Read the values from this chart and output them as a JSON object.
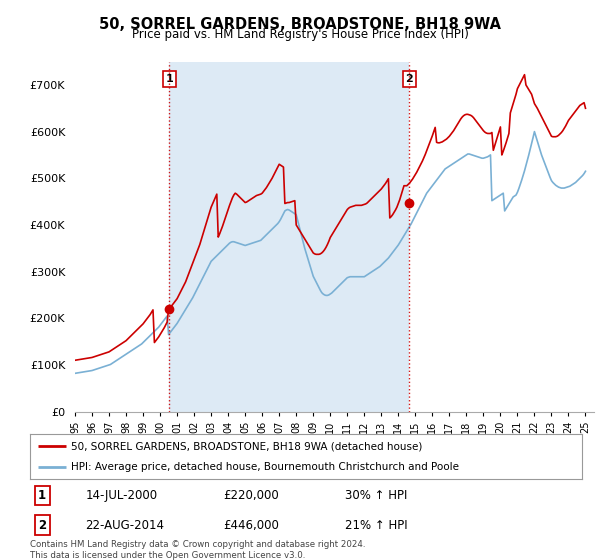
{
  "title": "50, SORREL GARDENS, BROADSTONE, BH18 9WA",
  "subtitle": "Price paid vs. HM Land Registry's House Price Index (HPI)",
  "ylim": [
    0,
    750000
  ],
  "yticks": [
    0,
    100000,
    200000,
    300000,
    400000,
    500000,
    600000,
    700000
  ],
  "property_color": "#cc0000",
  "hpi_color": "#7ab0d4",
  "vline_color": "#cc0000",
  "shade_color": "#ddeaf5",
  "marker1_x": 2000.54,
  "marker1_price": 220000,
  "marker2_x": 2014.64,
  "marker2_price": 446000,
  "annotation1_label": "1",
  "annotation2_label": "2",
  "legend_property": "50, SORREL GARDENS, BROADSTONE, BH18 9WA (detached house)",
  "legend_hpi": "HPI: Average price, detached house, Bournemouth Christchurch and Poole",
  "table_row1": [
    "1",
    "14-JUL-2000",
    "£220,000",
    "30% ↑ HPI"
  ],
  "table_row2": [
    "2",
    "22-AUG-2014",
    "£446,000",
    "21% ↑ HPI"
  ],
  "footnote": "Contains HM Land Registry data © Crown copyright and database right 2024.\nThis data is licensed under the Open Government Licence v3.0.",
  "background_color": "#ffffff",
  "grid_color": "#cccccc",
  "xlim_start": 1995.0,
  "xlim_end": 2025.5,
  "xtick_years": [
    1995,
    1996,
    1997,
    1998,
    1999,
    2000,
    2001,
    2002,
    2003,
    2004,
    2005,
    2006,
    2007,
    2008,
    2009,
    2010,
    2011,
    2012,
    2013,
    2014,
    2015,
    2016,
    2017,
    2018,
    2019,
    2020,
    2021,
    2022,
    2023,
    2024,
    2025
  ],
  "hpi_x": [
    1995.0,
    1995.083,
    1995.167,
    1995.25,
    1995.333,
    1995.417,
    1995.5,
    1995.583,
    1995.667,
    1995.75,
    1995.833,
    1995.917,
    1996.0,
    1996.083,
    1996.167,
    1996.25,
    1996.333,
    1996.417,
    1996.5,
    1996.583,
    1996.667,
    1996.75,
    1996.833,
    1996.917,
    1997.0,
    1997.083,
    1997.167,
    1997.25,
    1997.333,
    1997.417,
    1997.5,
    1997.583,
    1997.667,
    1997.75,
    1997.833,
    1997.917,
    1998.0,
    1998.083,
    1998.167,
    1998.25,
    1998.333,
    1998.417,
    1998.5,
    1998.583,
    1998.667,
    1998.75,
    1998.833,
    1998.917,
    1999.0,
    1999.083,
    1999.167,
    1999.25,
    1999.333,
    1999.417,
    1999.5,
    1999.583,
    1999.667,
    1999.75,
    1999.833,
    1999.917,
    2000.0,
    2000.083,
    2000.167,
    2000.25,
    2000.333,
    2000.417,
    2000.5,
    2000.583,
    2000.667,
    2000.75,
    2000.833,
    2000.917,
    2001.0,
    2001.083,
    2001.167,
    2001.25,
    2001.333,
    2001.417,
    2001.5,
    2001.583,
    2001.667,
    2001.75,
    2001.833,
    2001.917,
    2002.0,
    2002.083,
    2002.167,
    2002.25,
    2002.333,
    2002.417,
    2002.5,
    2002.583,
    2002.667,
    2002.75,
    2002.833,
    2002.917,
    2003.0,
    2003.083,
    2003.167,
    2003.25,
    2003.333,
    2003.417,
    2003.5,
    2003.583,
    2003.667,
    2003.75,
    2003.833,
    2003.917,
    2004.0,
    2004.083,
    2004.167,
    2004.25,
    2004.333,
    2004.417,
    2004.5,
    2004.583,
    2004.667,
    2004.75,
    2004.833,
    2004.917,
    2005.0,
    2005.083,
    2005.167,
    2005.25,
    2005.333,
    2005.417,
    2005.5,
    2005.583,
    2005.667,
    2005.75,
    2005.833,
    2005.917,
    2006.0,
    2006.083,
    2006.167,
    2006.25,
    2006.333,
    2006.417,
    2006.5,
    2006.583,
    2006.667,
    2006.75,
    2006.833,
    2006.917,
    2007.0,
    2007.083,
    2007.167,
    2007.25,
    2007.333,
    2007.417,
    2007.5,
    2007.583,
    2007.667,
    2007.75,
    2007.833,
    2007.917,
    2008.0,
    2008.083,
    2008.167,
    2008.25,
    2008.333,
    2008.417,
    2008.5,
    2008.583,
    2008.667,
    2008.75,
    2008.833,
    2008.917,
    2009.0,
    2009.083,
    2009.167,
    2009.25,
    2009.333,
    2009.417,
    2009.5,
    2009.583,
    2009.667,
    2009.75,
    2009.833,
    2009.917,
    2010.0,
    2010.083,
    2010.167,
    2010.25,
    2010.333,
    2010.417,
    2010.5,
    2010.583,
    2010.667,
    2010.75,
    2010.833,
    2010.917,
    2011.0,
    2011.083,
    2011.167,
    2011.25,
    2011.333,
    2011.417,
    2011.5,
    2011.583,
    2011.667,
    2011.75,
    2011.833,
    2011.917,
    2012.0,
    2012.083,
    2012.167,
    2012.25,
    2012.333,
    2012.417,
    2012.5,
    2012.583,
    2012.667,
    2012.75,
    2012.833,
    2012.917,
    2013.0,
    2013.083,
    2013.167,
    2013.25,
    2013.333,
    2013.417,
    2013.5,
    2013.583,
    2013.667,
    2013.75,
    2013.833,
    2013.917,
    2014.0,
    2014.083,
    2014.167,
    2014.25,
    2014.333,
    2014.417,
    2014.5,
    2014.583,
    2014.667,
    2014.75,
    2014.833,
    2014.917,
    2015.0,
    2015.083,
    2015.167,
    2015.25,
    2015.333,
    2015.417,
    2015.5,
    2015.583,
    2015.667,
    2015.75,
    2015.833,
    2015.917,
    2016.0,
    2016.083,
    2016.167,
    2016.25,
    2016.333,
    2016.417,
    2016.5,
    2016.583,
    2016.667,
    2016.75,
    2016.833,
    2016.917,
    2017.0,
    2017.083,
    2017.167,
    2017.25,
    2017.333,
    2017.417,
    2017.5,
    2017.583,
    2017.667,
    2017.75,
    2017.833,
    2017.917,
    2018.0,
    2018.083,
    2018.167,
    2018.25,
    2018.333,
    2018.417,
    2018.5,
    2018.583,
    2018.667,
    2018.75,
    2018.833,
    2018.917,
    2019.0,
    2019.083,
    2019.167,
    2019.25,
    2019.333,
    2019.417,
    2019.5,
    2019.583,
    2019.667,
    2019.75,
    2019.833,
    2019.917,
    2020.0,
    2020.083,
    2020.167,
    2020.25,
    2020.333,
    2020.417,
    2020.5,
    2020.583,
    2020.667,
    2020.75,
    2020.833,
    2020.917,
    2021.0,
    2021.083,
    2021.167,
    2021.25,
    2021.333,
    2021.417,
    2021.5,
    2021.583,
    2021.667,
    2021.75,
    2021.833,
    2021.917,
    2022.0,
    2022.083,
    2022.167,
    2022.25,
    2022.333,
    2022.417,
    2022.5,
    2022.583,
    2022.667,
    2022.75,
    2022.833,
    2022.917,
    2023.0,
    2023.083,
    2023.167,
    2023.25,
    2023.333,
    2023.417,
    2023.5,
    2023.583,
    2023.667,
    2023.75,
    2023.833,
    2023.917,
    2024.0,
    2024.083,
    2024.167,
    2024.25,
    2024.333,
    2024.417,
    2024.5,
    2024.583,
    2024.667,
    2024.75,
    2024.833,
    2024.917,
    2025.0
  ],
  "hpi_v": [
    82000,
    82500,
    83000,
    83500,
    84000,
    84500,
    85000,
    85500,
    86000,
    86500,
    87000,
    87500,
    88000,
    89000,
    90000,
    91000,
    92000,
    93000,
    94000,
    95000,
    96000,
    97000,
    98000,
    99000,
    100000,
    101000,
    103000,
    105000,
    107000,
    109000,
    111000,
    113000,
    115000,
    117000,
    119000,
    121000,
    123000,
    125000,
    127000,
    129000,
    131000,
    133000,
    135000,
    137000,
    139000,
    141000,
    143000,
    145000,
    148000,
    151000,
    154000,
    157000,
    160000,
    163000,
    166000,
    169000,
    172000,
    175000,
    178000,
    181000,
    185000,
    189000,
    193000,
    197000,
    201000,
    205000,
    165000,
    169000,
    173000,
    177000,
    181000,
    185000,
    189000,
    194000,
    199000,
    204000,
    209000,
    214000,
    219000,
    224000,
    229000,
    234000,
    239000,
    244000,
    250000,
    256000,
    262000,
    268000,
    274000,
    280000,
    286000,
    292000,
    298000,
    304000,
    310000,
    316000,
    322000,
    325000,
    328000,
    331000,
    334000,
    337000,
    340000,
    343000,
    346000,
    349000,
    352000,
    355000,
    358000,
    361000,
    363000,
    364000,
    364000,
    363000,
    362000,
    361000,
    360000,
    359000,
    358000,
    357000,
    356000,
    357000,
    358000,
    359000,
    360000,
    361000,
    362000,
    363000,
    364000,
    365000,
    366000,
    367000,
    370000,
    373000,
    376000,
    379000,
    382000,
    385000,
    388000,
    391000,
    394000,
    397000,
    400000,
    403000,
    407000,
    412000,
    418000,
    424000,
    430000,
    432000,
    433000,
    432000,
    430000,
    428000,
    426000,
    424000,
    422000,
    410000,
    398000,
    386000,
    374000,
    362000,
    350000,
    340000,
    330000,
    320000,
    310000,
    300000,
    290000,
    284000,
    278000,
    272000,
    266000,
    260000,
    255000,
    252000,
    250000,
    249000,
    249000,
    250000,
    252000,
    254000,
    257000,
    260000,
    263000,
    266000,
    269000,
    272000,
    275000,
    278000,
    281000,
    284000,
    287000,
    288000,
    289000,
    289000,
    289000,
    289000,
    289000,
    289000,
    289000,
    289000,
    289000,
    289000,
    289000,
    291000,
    293000,
    295000,
    297000,
    299000,
    301000,
    303000,
    305000,
    307000,
    309000,
    311000,
    314000,
    317000,
    320000,
    323000,
    326000,
    329000,
    333000,
    337000,
    341000,
    345000,
    349000,
    353000,
    357000,
    362000,
    367000,
    372000,
    377000,
    382000,
    387000,
    392000,
    397000,
    402000,
    408000,
    414000,
    420000,
    426000,
    432000,
    438000,
    444000,
    450000,
    456000,
    462000,
    468000,
    472000,
    476000,
    480000,
    484000,
    488000,
    492000,
    496000,
    500000,
    504000,
    508000,
    512000,
    516000,
    520000,
    522000,
    524000,
    526000,
    528000,
    530000,
    532000,
    534000,
    536000,
    538000,
    540000,
    542000,
    544000,
    546000,
    548000,
    550000,
    552000,
    552000,
    551000,
    550000,
    549000,
    548000,
    547000,
    546000,
    545000,
    544000,
    543000,
    543000,
    544000,
    545000,
    546000,
    548000,
    550000,
    452000,
    454000,
    456000,
    458000,
    460000,
    462000,
    464000,
    466000,
    468000,
    430000,
    435000,
    440000,
    445000,
    450000,
    455000,
    460000,
    462000,
    464000,
    470000,
    478000,
    487000,
    496000,
    506000,
    516000,
    527000,
    538000,
    550000,
    562000,
    574000,
    587000,
    600000,
    590000,
    580000,
    570000,
    560000,
    550000,
    542000,
    534000,
    526000,
    518000,
    510000,
    502000,
    495000,
    491000,
    488000,
    485000,
    483000,
    481000,
    480000,
    479000,
    479000,
    479000,
    480000,
    481000,
    482000,
    483000,
    485000,
    487000,
    489000,
    491000,
    494000,
    497000,
    500000,
    503000,
    506000,
    510000,
    515000
  ],
  "prop_x": [
    1995.0,
    1995.083,
    1995.167,
    1995.25,
    1995.333,
    1995.417,
    1995.5,
    1995.583,
    1995.667,
    1995.75,
    1995.833,
    1995.917,
    1996.0,
    1996.083,
    1996.167,
    1996.25,
    1996.333,
    1996.417,
    1996.5,
    1996.583,
    1996.667,
    1996.75,
    1996.833,
    1996.917,
    1997.0,
    1997.083,
    1997.167,
    1997.25,
    1997.333,
    1997.417,
    1997.5,
    1997.583,
    1997.667,
    1997.75,
    1997.833,
    1997.917,
    1998.0,
    1998.083,
    1998.167,
    1998.25,
    1998.333,
    1998.417,
    1998.5,
    1998.583,
    1998.667,
    1998.75,
    1998.833,
    1998.917,
    1999.0,
    1999.083,
    1999.167,
    1999.25,
    1999.333,
    1999.417,
    1999.5,
    1999.583,
    1999.667,
    1999.75,
    1999.833,
    1999.917,
    2000.0,
    2000.083,
    2000.167,
    2000.25,
    2000.333,
    2000.417,
    2000.5,
    2000.583,
    2000.667,
    2000.75,
    2000.833,
    2000.917,
    2001.0,
    2001.083,
    2001.167,
    2001.25,
    2001.333,
    2001.417,
    2001.5,
    2001.583,
    2001.667,
    2001.75,
    2001.833,
    2001.917,
    2002.0,
    2002.083,
    2002.167,
    2002.25,
    2002.333,
    2002.417,
    2002.5,
    2002.583,
    2002.667,
    2002.75,
    2002.833,
    2002.917,
    2003.0,
    2003.083,
    2003.167,
    2003.25,
    2003.333,
    2003.417,
    2003.5,
    2003.583,
    2003.667,
    2003.75,
    2003.833,
    2003.917,
    2004.0,
    2004.083,
    2004.167,
    2004.25,
    2004.333,
    2004.417,
    2004.5,
    2004.583,
    2004.667,
    2004.75,
    2004.833,
    2004.917,
    2005.0,
    2005.083,
    2005.167,
    2005.25,
    2005.333,
    2005.417,
    2005.5,
    2005.583,
    2005.667,
    2005.75,
    2005.833,
    2005.917,
    2006.0,
    2006.083,
    2006.167,
    2006.25,
    2006.333,
    2006.417,
    2006.5,
    2006.583,
    2006.667,
    2006.75,
    2006.833,
    2006.917,
    2007.0,
    2007.083,
    2007.167,
    2007.25,
    2007.333,
    2007.417,
    2007.5,
    2007.583,
    2007.667,
    2007.75,
    2007.833,
    2007.917,
    2008.0,
    2008.083,
    2008.167,
    2008.25,
    2008.333,
    2008.417,
    2008.5,
    2008.583,
    2008.667,
    2008.75,
    2008.833,
    2008.917,
    2009.0,
    2009.083,
    2009.167,
    2009.25,
    2009.333,
    2009.417,
    2009.5,
    2009.583,
    2009.667,
    2009.75,
    2009.833,
    2009.917,
    2010.0,
    2010.083,
    2010.167,
    2010.25,
    2010.333,
    2010.417,
    2010.5,
    2010.583,
    2010.667,
    2010.75,
    2010.833,
    2010.917,
    2011.0,
    2011.083,
    2011.167,
    2011.25,
    2011.333,
    2011.417,
    2011.5,
    2011.583,
    2011.667,
    2011.75,
    2011.833,
    2011.917,
    2012.0,
    2012.083,
    2012.167,
    2012.25,
    2012.333,
    2012.417,
    2012.5,
    2012.583,
    2012.667,
    2012.75,
    2012.833,
    2012.917,
    2013.0,
    2013.083,
    2013.167,
    2013.25,
    2013.333,
    2013.417,
    2013.5,
    2013.583,
    2013.667,
    2013.75,
    2013.833,
    2013.917,
    2014.0,
    2014.083,
    2014.167,
    2014.25,
    2014.333,
    2014.417,
    2014.5,
    2014.583,
    2014.667,
    2014.75,
    2014.833,
    2014.917,
    2015.0,
    2015.083,
    2015.167,
    2015.25,
    2015.333,
    2015.417,
    2015.5,
    2015.583,
    2015.667,
    2015.75,
    2015.833,
    2015.917,
    2016.0,
    2016.083,
    2016.167,
    2016.25,
    2016.333,
    2016.417,
    2016.5,
    2016.583,
    2016.667,
    2016.75,
    2016.833,
    2016.917,
    2017.0,
    2017.083,
    2017.167,
    2017.25,
    2017.333,
    2017.417,
    2017.5,
    2017.583,
    2017.667,
    2017.75,
    2017.833,
    2017.917,
    2018.0,
    2018.083,
    2018.167,
    2018.25,
    2018.333,
    2018.417,
    2018.5,
    2018.583,
    2018.667,
    2018.75,
    2018.833,
    2018.917,
    2019.0,
    2019.083,
    2019.167,
    2019.25,
    2019.333,
    2019.417,
    2019.5,
    2019.583,
    2019.667,
    2019.75,
    2019.833,
    2019.917,
    2020.0,
    2020.083,
    2020.167,
    2020.25,
    2020.333,
    2020.417,
    2020.5,
    2020.583,
    2020.667,
    2020.75,
    2020.833,
    2020.917,
    2021.0,
    2021.083,
    2021.167,
    2021.25,
    2021.333,
    2021.417,
    2021.5,
    2021.583,
    2021.667,
    2021.75,
    2021.833,
    2021.917,
    2022.0,
    2022.083,
    2022.167,
    2022.25,
    2022.333,
    2022.417,
    2022.5,
    2022.583,
    2022.667,
    2022.75,
    2022.833,
    2022.917,
    2023.0,
    2023.083,
    2023.167,
    2023.25,
    2023.333,
    2023.417,
    2023.5,
    2023.583,
    2023.667,
    2023.75,
    2023.833,
    2023.917,
    2024.0,
    2024.083,
    2024.167,
    2024.25,
    2024.333,
    2024.417,
    2024.5,
    2024.583,
    2024.667,
    2024.75,
    2024.833,
    2024.917,
    2025.0
  ],
  "prop_v": [
    110000,
    110500,
    111000,
    111500,
    112000,
    112500,
    113000,
    113500,
    114000,
    114500,
    115000,
    115500,
    116000,
    117000,
    118000,
    119000,
    120000,
    121000,
    122000,
    123000,
    124000,
    125000,
    126000,
    127000,
    128000,
    130000,
    132000,
    134000,
    136000,
    138000,
    140000,
    142000,
    144000,
    146000,
    148000,
    150000,
    152000,
    155000,
    158000,
    161000,
    164000,
    167000,
    170000,
    173000,
    176000,
    179000,
    182000,
    185000,
    188000,
    192000,
    196000,
    200000,
    204000,
    208000,
    213000,
    218000,
    148000,
    152000,
    156000,
    160000,
    165000,
    170000,
    175000,
    180000,
    186000,
    192000,
    220000,
    222000,
    226000,
    230000,
    234000,
    238000,
    242000,
    248000,
    254000,
    260000,
    266000,
    272000,
    278000,
    286000,
    294000,
    302000,
    310000,
    318000,
    326000,
    334000,
    342000,
    350000,
    358000,
    368000,
    378000,
    388000,
    398000,
    408000,
    418000,
    428000,
    438000,
    445000,
    452000,
    459000,
    466000,
    374000,
    381000,
    389000,
    397000,
    406000,
    415000,
    424000,
    433000,
    442000,
    450000,
    458000,
    464000,
    468000,
    466000,
    463000,
    460000,
    457000,
    454000,
    451000,
    448000,
    449000,
    451000,
    453000,
    455000,
    457000,
    459000,
    461000,
    463000,
    464000,
    465000,
    466000,
    468000,
    472000,
    476000,
    480000,
    485000,
    490000,
    495000,
    500000,
    506000,
    512000,
    518000,
    524000,
    530000,
    528000,
    526000,
    524000,
    446000,
    447000,
    448000,
    448000,
    449000,
    450000,
    451000,
    452000,
    400000,
    395000,
    390000,
    385000,
    380000,
    375000,
    370000,
    365000,
    360000,
    355000,
    350000,
    345000,
    340000,
    338000,
    337000,
    337000,
    337000,
    338000,
    340000,
    343000,
    347000,
    352000,
    358000,
    365000,
    373000,
    378000,
    383000,
    388000,
    393000,
    398000,
    403000,
    408000,
    413000,
    418000,
    423000,
    428000,
    433000,
    436000,
    438000,
    439000,
    440000,
    441000,
    442000,
    442000,
    442000,
    442000,
    442000,
    443000,
    444000,
    445000,
    447000,
    450000,
    453000,
    456000,
    459000,
    462000,
    465000,
    468000,
    471000,
    474000,
    477000,
    481000,
    485000,
    489000,
    494000,
    499000,
    415000,
    418000,
    422000,
    427000,
    432000,
    438000,
    446000,
    454000,
    464000,
    474000,
    484000,
    484000,
    484000,
    487000,
    490000,
    494000,
    498000,
    503000,
    508000,
    513000,
    519000,
    525000,
    531000,
    537000,
    544000,
    551000,
    559000,
    567000,
    575000,
    583000,
    591000,
    600000,
    609000,
    577000,
    576000,
    576000,
    577000,
    578000,
    580000,
    582000,
    584000,
    587000,
    590000,
    594000,
    598000,
    602000,
    607000,
    612000,
    617000,
    622000,
    627000,
    631000,
    634000,
    636000,
    637000,
    637000,
    636000,
    635000,
    633000,
    630000,
    626000,
    622000,
    618000,
    614000,
    610000,
    606000,
    602000,
    599000,
    597000,
    596000,
    596000,
    596000,
    598000,
    560000,
    570000,
    580000,
    590000,
    600000,
    610000,
    550000,
    558000,
    567000,
    576000,
    586000,
    596000,
    640000,
    650000,
    660000,
    670000,
    680000,
    692000,
    698000,
    704000,
    710000,
    716000,
    722000,
    700000,
    695000,
    690000,
    685000,
    680000,
    670000,
    660000,
    655000,
    650000,
    644000,
    638000,
    632000,
    626000,
    620000,
    614000,
    608000,
    602000,
    596000,
    590000,
    589000,
    589000,
    589000,
    590000,
    592000,
    595000,
    598000,
    602000,
    607000,
    612000,
    618000,
    624000,
    628000,
    632000,
    636000,
    640000,
    644000,
    648000,
    652000,
    656000,
    658000,
    660000,
    662000,
    650000
  ]
}
